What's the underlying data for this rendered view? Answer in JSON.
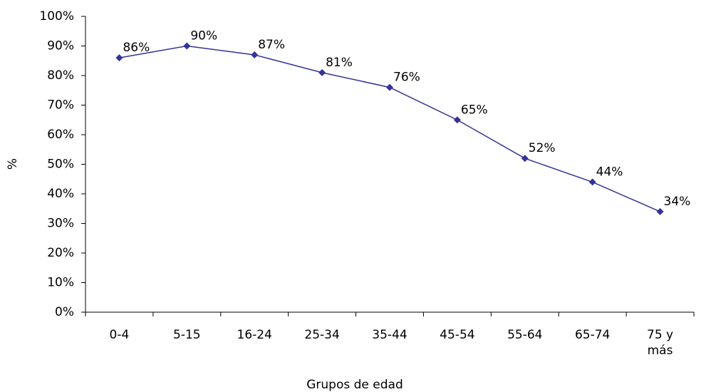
{
  "chart_data": {
    "type": "line",
    "y_label": "%",
    "x_label": "Grupos de edad",
    "categories": [
      "0-4",
      "5-15",
      "16-24",
      "25-34",
      "35-44",
      "45-54",
      "55-64",
      "65-74",
      "75 y más"
    ],
    "series": [
      {
        "color": "#333399",
        "values": [
          86,
          90,
          87,
          81,
          76,
          65,
          52,
          44,
          34
        ],
        "value_labels": [
          "86%",
          "90%",
          "87%",
          "81%",
          "76%",
          "65%",
          "52%",
          "44%",
          "34%"
        ]
      }
    ],
    "ylim": [
      0,
      100
    ],
    "yticks": [
      {
        "value": 0,
        "label": "0%"
      },
      {
        "value": 10,
        "label": "10%"
      },
      {
        "value": 20,
        "label": "20%"
      },
      {
        "value": 30,
        "label": "30%"
      },
      {
        "value": 40,
        "label": "40%"
      },
      {
        "value": 50,
        "label": "50%"
      },
      {
        "value": 60,
        "label": "60%"
      },
      {
        "value": 70,
        "label": "70%"
      },
      {
        "value": 80,
        "label": "80%"
      },
      {
        "value": 90,
        "label": "90%"
      },
      {
        "value": 100,
        "label": "100%"
      }
    ],
    "grid": false
  }
}
